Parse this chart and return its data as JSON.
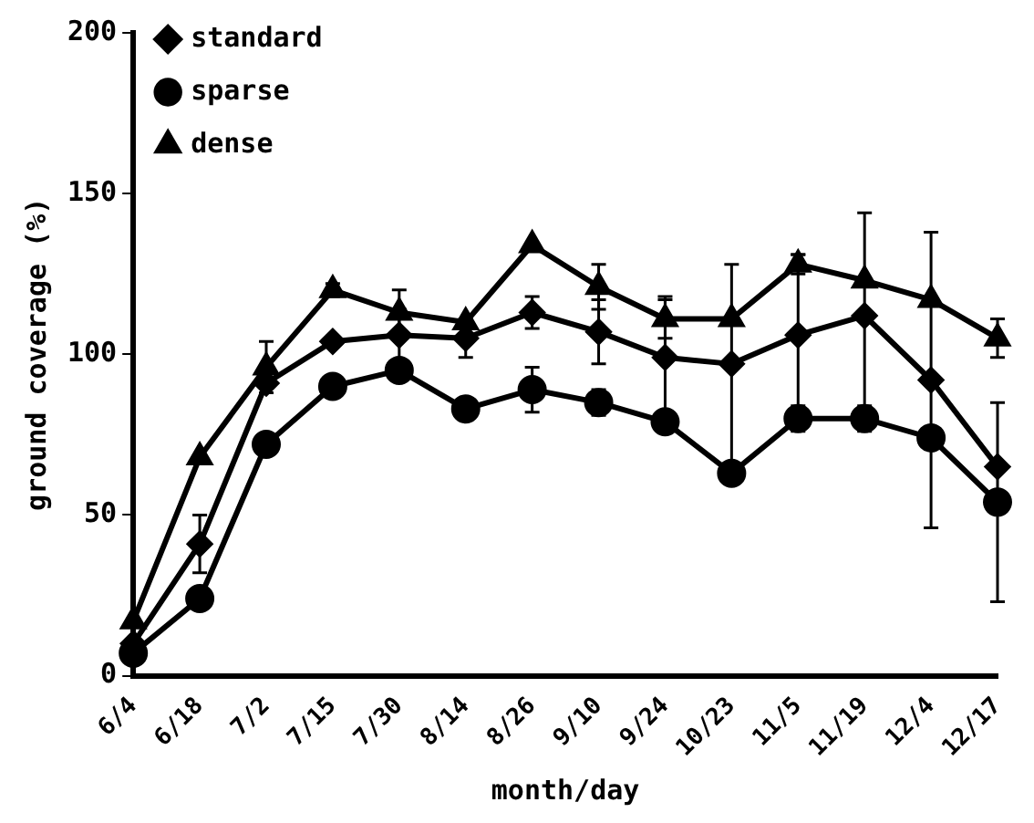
{
  "chart_data": {
    "type": "line",
    "xlabel": "month/day",
    "ylabel": "ground coverage (%)",
    "categories": [
      "6/4",
      "6/18",
      "7/2",
      "7/15",
      "7/30",
      "8/14",
      "8/26",
      "9/10",
      "9/24",
      "10/23",
      "11/5",
      "11/19",
      "12/4",
      "12/17"
    ],
    "series": [
      {
        "name": "standard",
        "color": "#000000",
        "marker": "diamond",
        "values": [
          10,
          41,
          91,
          104,
          106,
          105,
          113,
          107,
          99,
          97,
          106,
          112,
          92,
          65
        ],
        "errors": [
          null,
          9,
          null,
          null,
          8,
          6,
          5,
          10,
          19,
          31,
          25,
          32,
          46,
          null
        ]
      },
      {
        "name": "sparse",
        "color": "#000000",
        "marker": "circle",
        "values": [
          7,
          24,
          72,
          90,
          95,
          83,
          89,
          85,
          79,
          63,
          80,
          80,
          74,
          54
        ],
        "errors": [
          null,
          null,
          null,
          null,
          null,
          null,
          7,
          4,
          null,
          null,
          4,
          4,
          null,
          31
        ]
      },
      {
        "name": "dense",
        "color": "#000000",
        "marker": "triangle",
        "values": [
          17,
          68,
          96,
          120,
          113,
          110,
          134,
          121,
          111,
          111,
          128,
          123,
          117,
          105
        ],
        "errors": [
          null,
          null,
          8,
          2,
          7,
          null,
          null,
          7,
          6,
          null,
          3,
          null,
          null,
          6
        ]
      }
    ],
    "ylim": [
      0,
      200
    ],
    "yticks": [
      0,
      50,
      100,
      150,
      200
    ],
    "grid": false,
    "legend": "top left"
  }
}
